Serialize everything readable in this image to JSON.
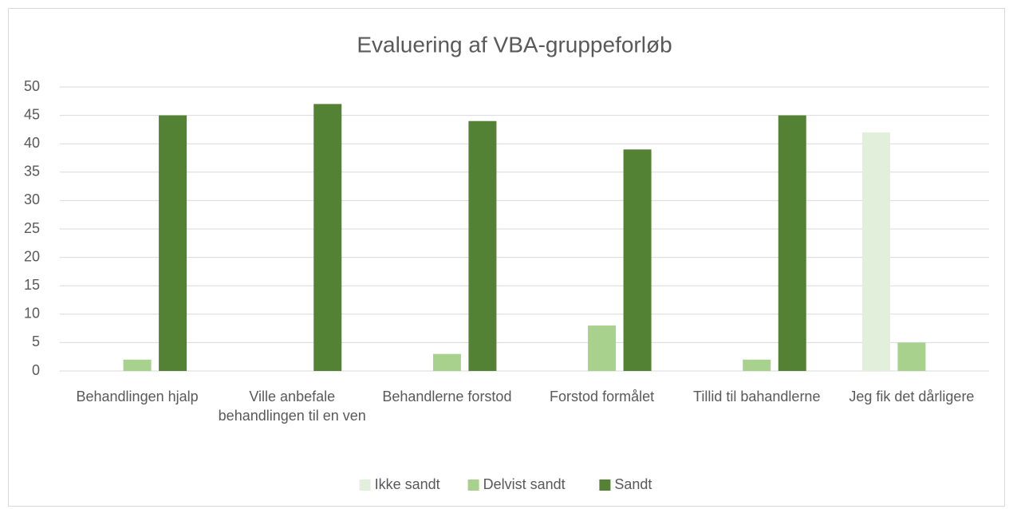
{
  "chart_data": {
    "type": "bar",
    "title": "Evaluering af VBA-gruppeforløb",
    "categories": [
      "Behandlingen hjalp",
      "Ville anbefale behandlingen til en ven",
      "Behandlerne forstod",
      "Forstod formålet",
      "Tillid til bahandlerne",
      "Jeg fik det dårligere"
    ],
    "series": [
      {
        "name": "Ikke sandt",
        "color": "#e2efda",
        "values": [
          0,
          0,
          0,
          0,
          0,
          42
        ]
      },
      {
        "name": "Delvist sandt",
        "color": "#a9d18e",
        "values": [
          2,
          0,
          3,
          8,
          2,
          5
        ]
      },
      {
        "name": "Sandt",
        "color": "#548235",
        "values": [
          45,
          47,
          44,
          39,
          45,
          0
        ]
      }
    ],
    "ylim": [
      0,
      50
    ],
    "yticks": [
      0,
      5,
      10,
      15,
      20,
      25,
      30,
      35,
      40,
      45,
      50
    ],
    "grid": true,
    "legend": "bottom"
  }
}
